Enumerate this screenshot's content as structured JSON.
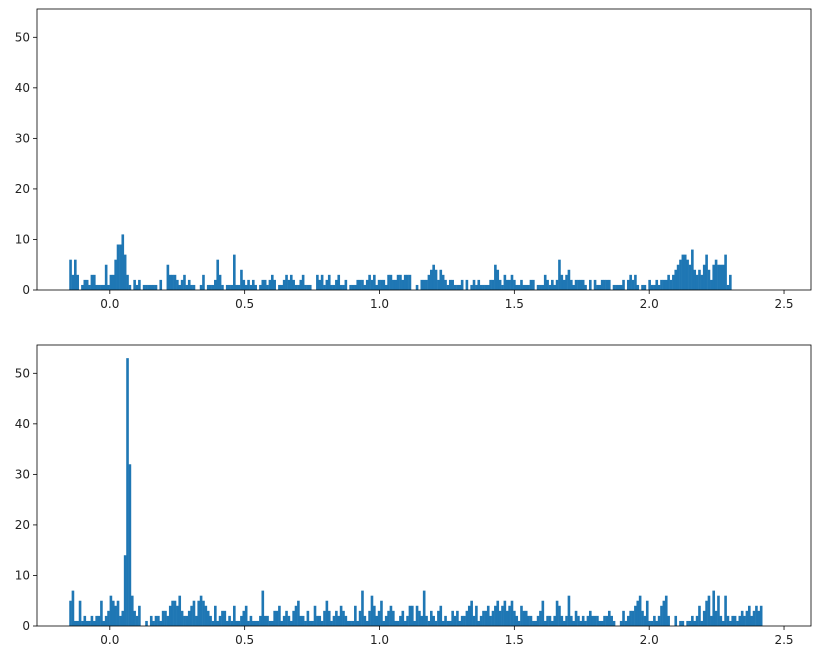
{
  "colors": {
    "bar": "#1f77b4",
    "axis": "#000000"
  },
  "chart_data": [
    {
      "type": "bar",
      "title": "",
      "xlabel": "",
      "ylabel": "",
      "xlim": [
        -0.27,
        2.6
      ],
      "ylim": [
        0,
        55.6
      ],
      "bin_start": -0.1504,
      "bin_width": 0.0088,
      "xticks": [
        0.0,
        0.5,
        1.0,
        1.5,
        2.0,
        2.5
      ],
      "xtick_labels": [
        "0.0",
        "0.5",
        "1.0",
        "1.5",
        "2.0",
        "2.5"
      ],
      "yticks": [
        0,
        10,
        20,
        30,
        40,
        50
      ],
      "ytick_labels": [
        "0",
        "10",
        "20",
        "30",
        "40",
        "50"
      ],
      "grid": false,
      "values": [
        6,
        3,
        6,
        3,
        0,
        1,
        2,
        2,
        1,
        3,
        3,
        1,
        1,
        1,
        1,
        5,
        1,
        3,
        3,
        6,
        9,
        9,
        11,
        7,
        3,
        1,
        0,
        2,
        1,
        2,
        0,
        1,
        1,
        1,
        1,
        1,
        1,
        0,
        2,
        0,
        0,
        5,
        3,
        3,
        3,
        2,
        1,
        2,
        3,
        1,
        2,
        1,
        1,
        0,
        0,
        1,
        3,
        0,
        1,
        1,
        1,
        2,
        6,
        3,
        1,
        0,
        1,
        1,
        1,
        7,
        1,
        1,
        4,
        2,
        1,
        2,
        1,
        2,
        1,
        0,
        1,
        2,
        2,
        1,
        2,
        3,
        2,
        0,
        1,
        1,
        2,
        3,
        2,
        3,
        2,
        1,
        1,
        2,
        3,
        1,
        1,
        1,
        0,
        0,
        3,
        2,
        3,
        1,
        2,
        3,
        1,
        1,
        2,
        3,
        1,
        1,
        2,
        0,
        1,
        1,
        1,
        2,
        2,
        2,
        1,
        2,
        3,
        2,
        3,
        1,
        2,
        2,
        2,
        1,
        3,
        3,
        2,
        2,
        3,
        3,
        2,
        3,
        3,
        3,
        0,
        0,
        1,
        0,
        2,
        2,
        2,
        3,
        4,
        5,
        4,
        2,
        4,
        3,
        2,
        1,
        2,
        2,
        1,
        1,
        1,
        2,
        0,
        2,
        0,
        1,
        2,
        1,
        2,
        1,
        1,
        1,
        1,
        2,
        2,
        5,
        4,
        2,
        1,
        3,
        2,
        2,
        3,
        2,
        1,
        1,
        2,
        1,
        1,
        1,
        2,
        2,
        0,
        1,
        1,
        1,
        3,
        2,
        1,
        2,
        1,
        2,
        6,
        3,
        2,
        3,
        4,
        2,
        1,
        2,
        2,
        2,
        2,
        1,
        0,
        2,
        0,
        2,
        1,
        1,
        2,
        2,
        2,
        2,
        0,
        1,
        1,
        1,
        1,
        2,
        0,
        2,
        3,
        2,
        3,
        1,
        0,
        1,
        1,
        0,
        2,
        1,
        1,
        2,
        1,
        2,
        2,
        2,
        3,
        2,
        3,
        4,
        5,
        6,
        7,
        7,
        6,
        5,
        8,
        4,
        3,
        4,
        3,
        5,
        7,
        4,
        2,
        5,
        6,
        5,
        5,
        5,
        7,
        1,
        3
      ],
      "series": [
        {
          "values": []
        }
      ]
    },
    {
      "type": "bar",
      "title": "",
      "xlabel": "",
      "ylabel": "",
      "xlim": [
        -0.27,
        2.6
      ],
      "ylim": [
        0,
        55.6
      ],
      "bin_start": -0.1504,
      "bin_width": 0.0088,
      "xticks": [
        0.0,
        0.5,
        1.0,
        1.5,
        2.0,
        2.5
      ],
      "xtick_labels": [
        "0.0",
        "0.5",
        "1.0",
        "1.5",
        "2.0",
        "2.5"
      ],
      "yticks": [
        0,
        10,
        20,
        30,
        40,
        50
      ],
      "ytick_labels": [
        "0",
        "10",
        "20",
        "30",
        "40",
        "50"
      ],
      "grid": false,
      "values": [
        5,
        7,
        1,
        1,
        5,
        1,
        2,
        1,
        1,
        2,
        1,
        2,
        2,
        5,
        1,
        2,
        3,
        6,
        5,
        4,
        5,
        2,
        3,
        14,
        53,
        32,
        6,
        3,
        2,
        4,
        0,
        0,
        1,
        0,
        2,
        1,
        2,
        2,
        1,
        3,
        3,
        2,
        4,
        5,
        5,
        4,
        6,
        3,
        2,
        2,
        3,
        4,
        5,
        2,
        5,
        6,
        5,
        4,
        3,
        2,
        1,
        4,
        1,
        2,
        3,
        3,
        1,
        2,
        1,
        4,
        1,
        1,
        2,
        3,
        4,
        1,
        2,
        1,
        1,
        1,
        2,
        7,
        2,
        2,
        1,
        1,
        3,
        3,
        4,
        1,
        2,
        3,
        2,
        1,
        3,
        4,
        5,
        2,
        2,
        1,
        3,
        1,
        1,
        4,
        2,
        2,
        1,
        3,
        5,
        3,
        1,
        2,
        3,
        2,
        4,
        3,
        2,
        1,
        1,
        1,
        4,
        1,
        3,
        7,
        2,
        1,
        3,
        6,
        4,
        2,
        3,
        5,
        1,
        2,
        3,
        4,
        3,
        1,
        1,
        2,
        3,
        1,
        2,
        4,
        4,
        1,
        4,
        3,
        2,
        7,
        2,
        1,
        3,
        2,
        1,
        3,
        4,
        1,
        2,
        1,
        1,
        3,
        2,
        3,
        1,
        2,
        2,
        3,
        4,
        5,
        2,
        4,
        1,
        2,
        3,
        3,
        4,
        2,
        3,
        4,
        5,
        3,
        4,
        5,
        3,
        4,
        5,
        3,
        2,
        1,
        4,
        3,
        3,
        2,
        2,
        1,
        1,
        2,
        3,
        5,
        1,
        2,
        2,
        1,
        2,
        5,
        4,
        2,
        1,
        2,
        6,
        2,
        1,
        3,
        2,
        1,
        2,
        1,
        2,
        3,
        2,
        2,
        2,
        1,
        1,
        2,
        2,
        3,
        2,
        1,
        0,
        0,
        1,
        3,
        1,
        2,
        3,
        3,
        4,
        5,
        6,
        3,
        2,
        5,
        1,
        1,
        2,
        1,
        2,
        4,
        5,
        6,
        2,
        0,
        0,
        2,
        0,
        1,
        1,
        0,
        1,
        1,
        2,
        1,
        2,
        4,
        1,
        3,
        5,
        6,
        2,
        7,
        3,
        6,
        2,
        1,
        6,
        2,
        1,
        2,
        2,
        1,
        2,
        3,
        2,
        3,
        4,
        2,
        3,
        4,
        3,
        4
      ],
      "series": [
        {
          "values": []
        }
      ]
    }
  ]
}
